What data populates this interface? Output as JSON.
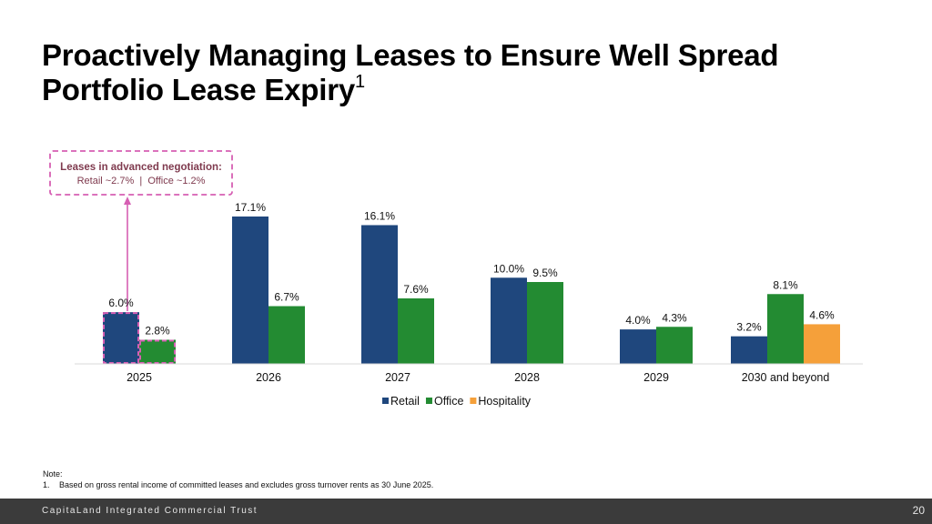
{
  "slide": {
    "title_line1": "Proactively Managing Leases to Ensure Well Spread",
    "title_line2": "Portfolio Lease Expiry",
    "title_superscript": "1",
    "callout_title": "Leases in advanced negotiation:",
    "callout_detail": "Retail ~2.7%  |  Office ~1.2%",
    "note_heading": "Note:",
    "note_number": "1.",
    "note_text": "Based on gross rental income of committed leases and excludes gross turnover rents as 30 June 2025.",
    "footer_brand": "CapitaLand Integrated Commercial Trust",
    "page_number": "20"
  },
  "chart_data": {
    "type": "bar",
    "categories": [
      "2025",
      "2026",
      "2027",
      "2028",
      "2029",
      "2030 and beyond"
    ],
    "series": [
      {
        "name": "Retail",
        "color": "#1f477d",
        "values": [
          6.0,
          17.1,
          16.1,
          10.0,
          4.0,
          3.2
        ],
        "labels": [
          "6.0%",
          "17.1%",
          "16.1%",
          "10.0%",
          "4.0%",
          "3.2%"
        ]
      },
      {
        "name": "Office",
        "color": "#238b32",
        "values": [
          2.8,
          6.7,
          7.6,
          9.5,
          4.3,
          8.1
        ],
        "labels": [
          "2.8%",
          "6.7%",
          "7.6%",
          "9.5%",
          "4.3%",
          "8.1%"
        ]
      },
      {
        "name": "Hospitality",
        "color": "#f5a03a",
        "values": [
          null,
          null,
          null,
          null,
          null,
          4.6
        ],
        "labels": [
          null,
          null,
          null,
          null,
          null,
          "4.6%"
        ]
      }
    ],
    "highlight": {
      "category": "2025",
      "series": [
        "Retail",
        "Office"
      ],
      "color": "#d65fb3"
    },
    "ylim": [
      0,
      17.1
    ],
    "legend_position": "bottom",
    "grid": false
  }
}
